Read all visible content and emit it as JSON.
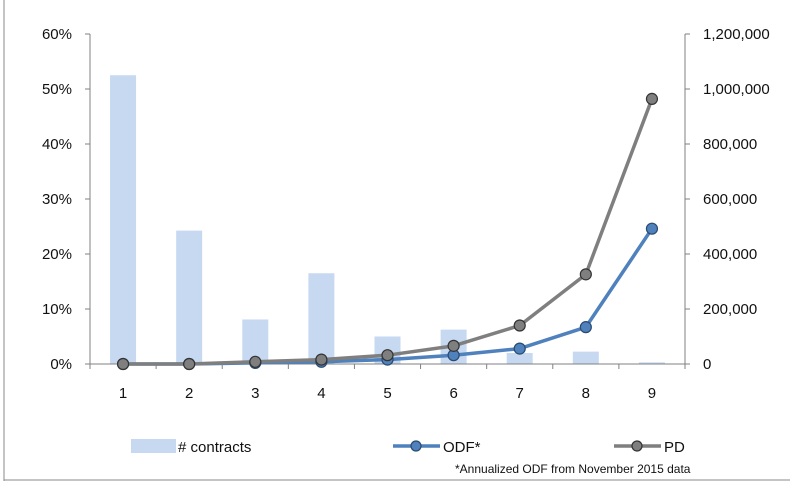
{
  "chart_data": {
    "type": "bar+line",
    "categories": [
      "1",
      "2",
      "3",
      "4",
      "5",
      "6",
      "7",
      "8",
      "9"
    ],
    "left_axis": {
      "ylim": [
        0,
        0.6
      ],
      "ticks": [
        0,
        0.1,
        0.2,
        0.3,
        0.4,
        0.5,
        0.6
      ],
      "tick_labels": [
        "0%",
        "10%",
        "20%",
        "30%",
        "40%",
        "50%",
        "60%"
      ]
    },
    "right_axis": {
      "ylim": [
        0,
        1200000
      ],
      "ticks": [
        0,
        200000,
        400000,
        600000,
        800000,
        1000000,
        1200000
      ],
      "tick_labels": [
        "0",
        "200,000",
        "400,000",
        "600,000",
        "800,000",
        "1,000,000",
        "1,200,000"
      ]
    },
    "series": [
      {
        "name": "# contracts",
        "kind": "bar",
        "axis": "right",
        "color": "#c6d9f1",
        "values": [
          1050000,
          485000,
          162000,
          330000,
          100000,
          125000,
          40000,
          45000,
          6000
        ]
      },
      {
        "name": "ODF*",
        "kind": "line",
        "axis": "left",
        "color": "#4f81bd",
        "values": [
          0.0,
          0.0,
          0.002,
          0.004,
          0.008,
          0.016,
          0.028,
          0.067,
          0.246
        ]
      },
      {
        "name": "PD",
        "kind": "line",
        "axis": "left",
        "color": "#7f7f7f",
        "values": [
          0.0,
          0.0,
          0.004,
          0.008,
          0.016,
          0.033,
          0.07,
          0.163,
          0.482
        ]
      }
    ],
    "legend_position": "bottom",
    "footnote": "*Annualized ODF from November 2015 data"
  }
}
